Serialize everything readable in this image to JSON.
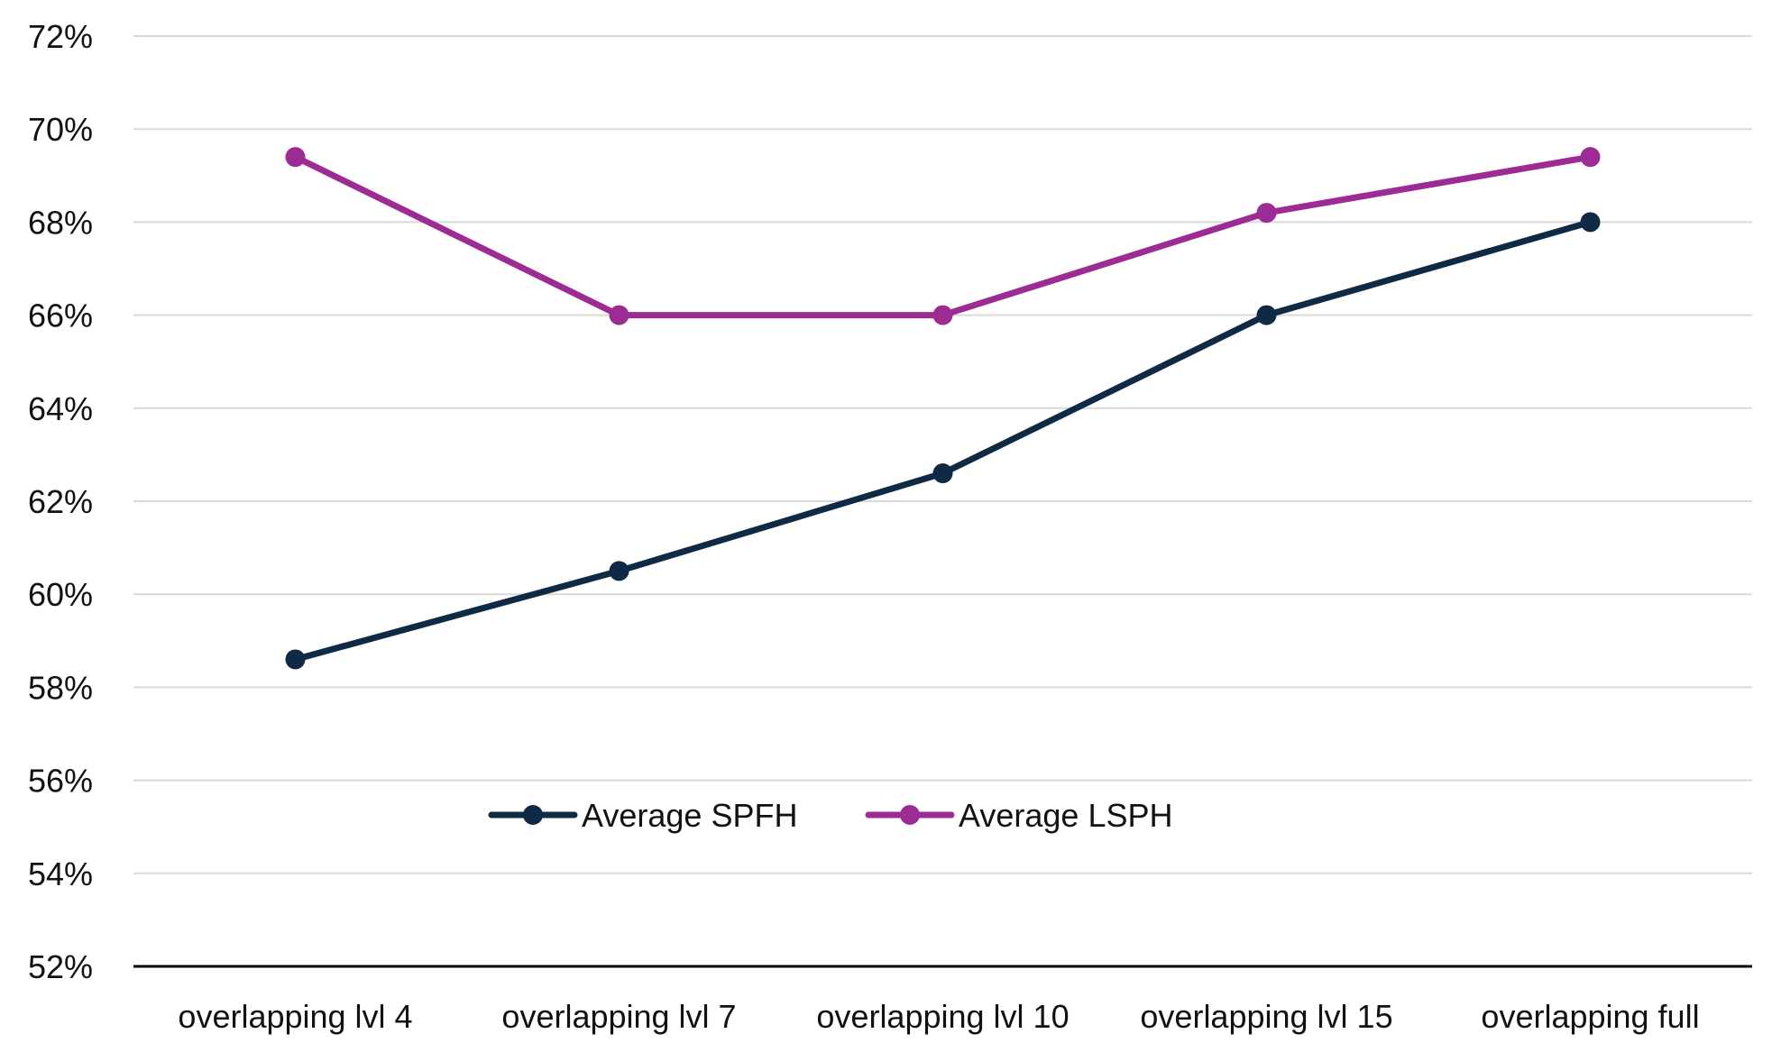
{
  "chart_data": {
    "type": "line",
    "title": "",
    "xlabel": "",
    "ylabel": "",
    "categories": [
      "overlapping lvl 4",
      "overlapping lvl 7",
      "overlapping lvl 10",
      "overlapping lvl 15",
      "overlapping full"
    ],
    "y_tick_labels": [
      "52%",
      "54%",
      "56%",
      "58%",
      "60%",
      "62%",
      "64%",
      "66%",
      "68%",
      "70%",
      "72%"
    ],
    "ylim": [
      52,
      72
    ],
    "y_unit": "%",
    "grid": true,
    "legend_position": "center",
    "series": [
      {
        "name": "Average SPFH",
        "color": "#0f2a45",
        "values": [
          58.6,
          60.5,
          62.6,
          66.0,
          68.0
        ]
      },
      {
        "name": "Average LSPH",
        "color": "#9c2b93",
        "values": [
          69.4,
          66.0,
          66.0,
          68.2,
          69.4
        ]
      }
    ]
  }
}
